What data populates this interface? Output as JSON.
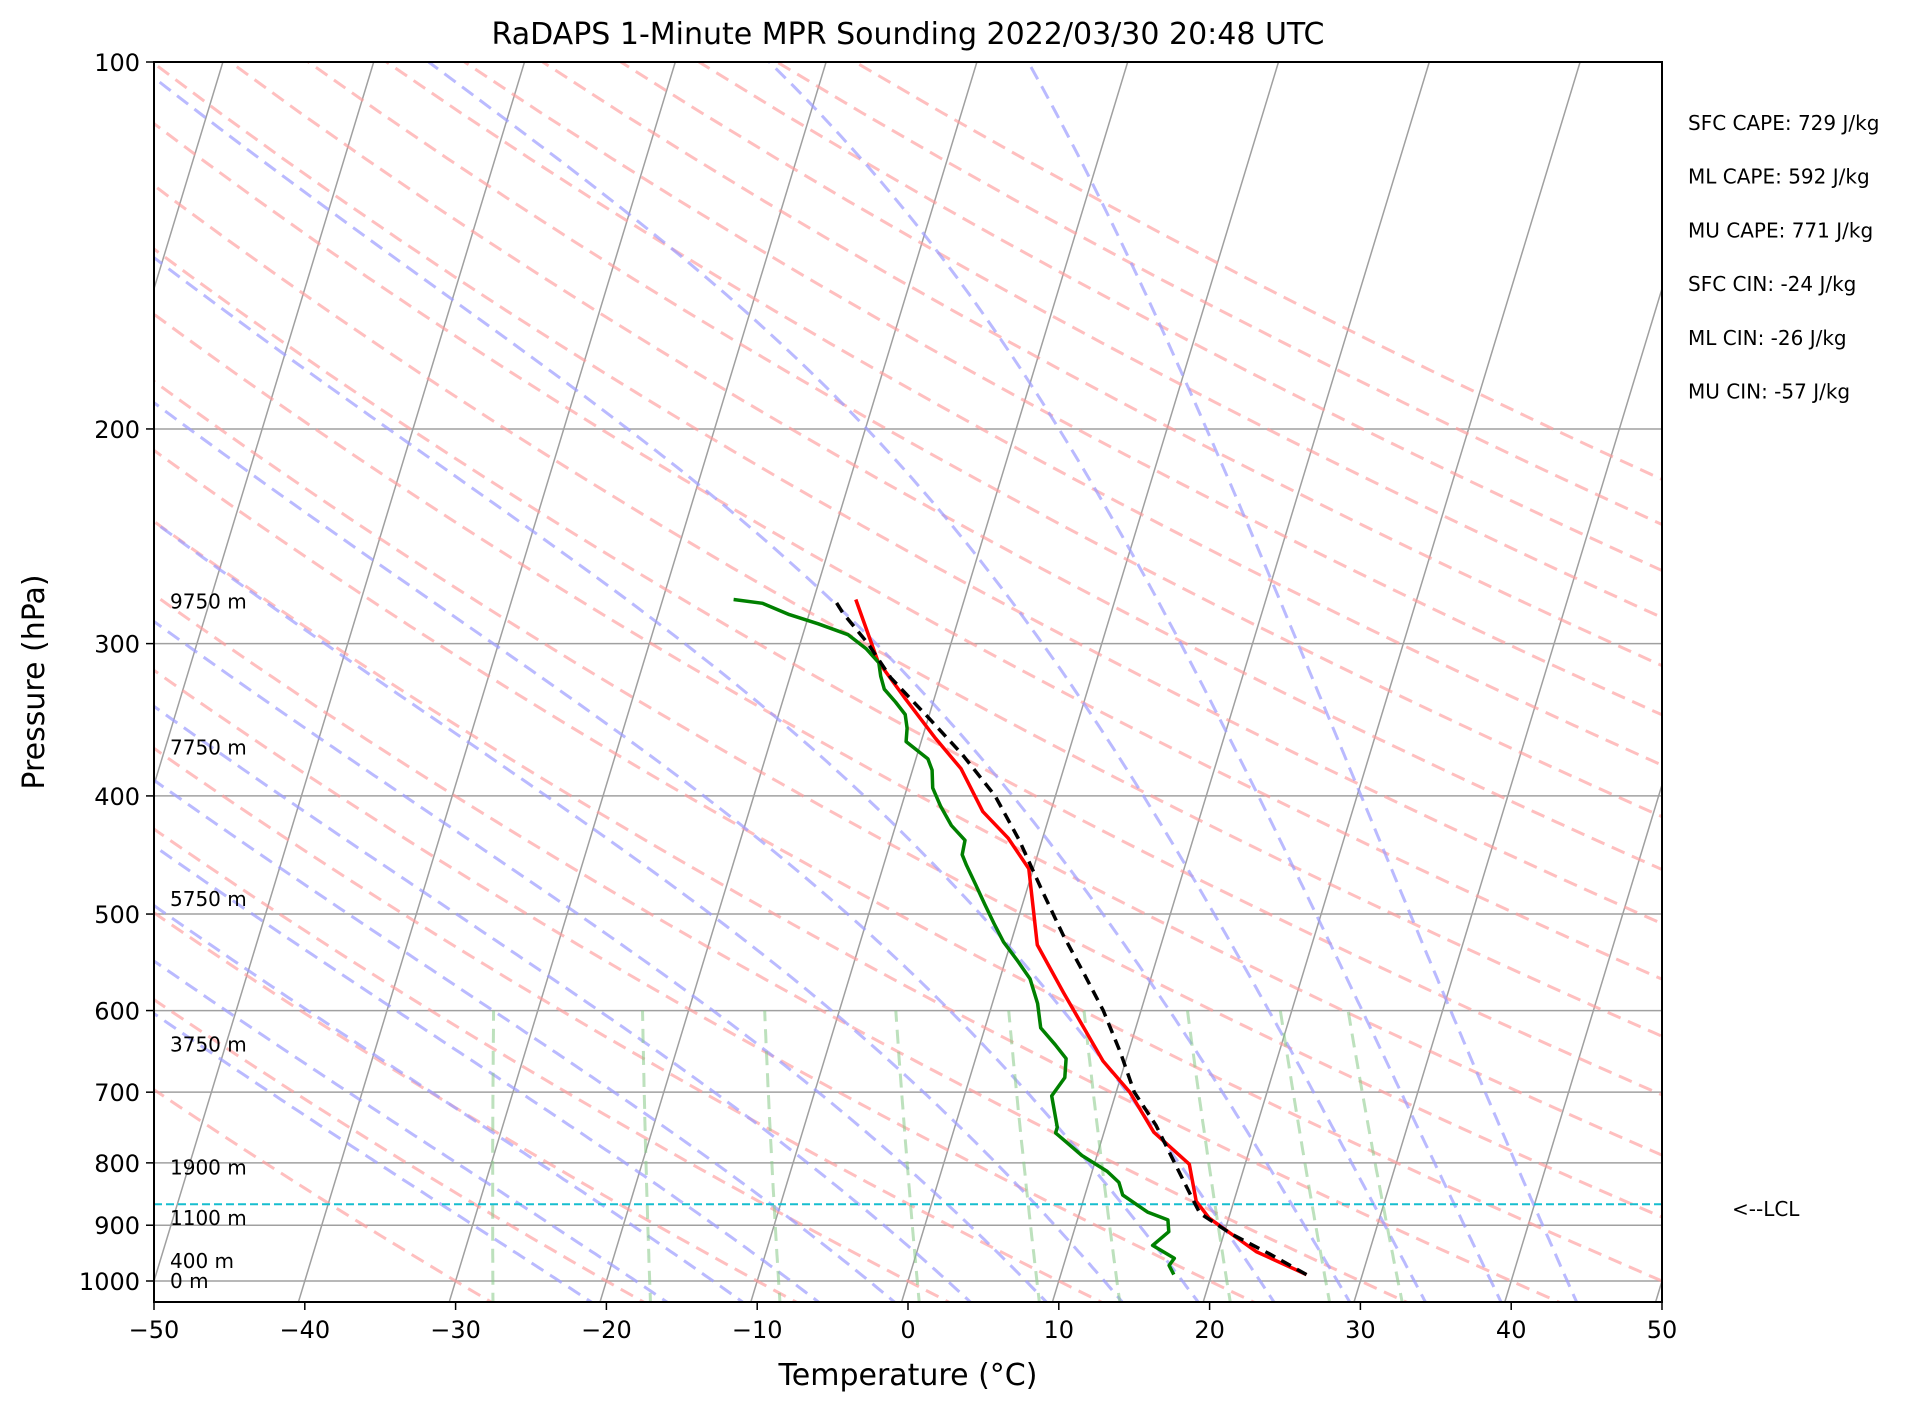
{
  "chart_data": {
    "type": "line",
    "title": "RaDAPS 1-Minute MPR Sounding 2022/03/30 20:48 UTC",
    "xlabel": "Temperature (°C)",
    "ylabel": "Pressure (hPa)",
    "xlim": [
      -50,
      50
    ],
    "ylim": [
      1050,
      100
    ],
    "y_scale": "log",
    "skew_t": true,
    "xticks": [
      -50,
      -40,
      -30,
      -20,
      -10,
      0,
      10,
      20,
      30,
      40,
      50
    ],
    "xtick_labels": [
      "−50",
      "−40",
      "−30",
      "−20",
      "−10",
      "0",
      "10",
      "20",
      "30",
      "40",
      "50"
    ],
    "yticks": [
      1000,
      900,
      800,
      700,
      600,
      500,
      400,
      300,
      200,
      100
    ],
    "ytick_labels": [
      "1000",
      "900",
      "800",
      "700",
      "600",
      "500",
      "400",
      "300",
      "200",
      "100"
    ],
    "grid": true,
    "colors": {
      "temperature": "#ff0000",
      "dewpoint": "#008000",
      "parcel": "#000000",
      "lcl": "#17becf",
      "dry_adiabats": "#ff9c9c",
      "moist_adiabats": "#9c9cff",
      "mixing_ratio": "#86c886",
      "isotherms": "#a0a0a0"
    },
    "height_labels": [
      {
        "label": "0 m",
        "p": 1000
      },
      {
        "label": "400 m",
        "p": 963
      },
      {
        "label": "1100 m",
        "p": 888
      },
      {
        "label": "1900 m",
        "p": 807
      },
      {
        "label": "3750 m",
        "p": 640
      },
      {
        "label": "5750 m",
        "p": 486
      },
      {
        "label": "7750 m",
        "p": 365
      },
      {
        "label": "9750 m",
        "p": 277
      }
    ],
    "lcl": {
      "label": "<--LCL",
      "p": 865
    },
    "indices": [
      "SFC CAPE: 729 J/kg",
      "ML CAPE: 592 J/kg",
      "MU CAPE: 771 J/kg",
      "SFC CIN: -24 J/kg",
      "ML CIN: -26 J/kg",
      "MU CIN: -57 J/kg"
    ],
    "series": [
      {
        "name": "",
        "role": "temperature",
        "points": [
          [
            26.3,
            988
          ],
          [
            22.5,
            946
          ],
          [
            20.5,
            915
          ],
          [
            18.7,
            888
          ],
          [
            17.5,
            860
          ],
          [
            16.3,
            802
          ],
          [
            13.3,
            755
          ],
          [
            10.9,
            700
          ],
          [
            8.5,
            660
          ],
          [
            4.5,
            580
          ],
          [
            1.8,
            530
          ],
          [
            -0.3,
            459
          ],
          [
            -2.3,
            433
          ],
          [
            -4.5,
            412
          ],
          [
            -6.8,
            380
          ],
          [
            -9.2,
            358
          ],
          [
            -11.9,
            333
          ],
          [
            -14.5,
            310
          ],
          [
            -17.2,
            276
          ]
        ]
      },
      {
        "name": "",
        "role": "dewpoint",
        "points": [
          [
            17.5,
            988
          ],
          [
            17.0,
            971
          ],
          [
            17.2,
            958
          ],
          [
            15.5,
            935
          ],
          [
            16.3,
            911
          ],
          [
            16.0,
            891
          ],
          [
            14.5,
            878
          ],
          [
            12.5,
            850
          ],
          [
            12.0,
            830
          ],
          [
            11.0,
            813
          ],
          [
            9.0,
            789
          ],
          [
            6.8,
            756
          ],
          [
            6.8,
            748
          ],
          [
            5.8,
            705
          ],
          [
            6.3,
            681
          ],
          [
            6.0,
            657
          ],
          [
            5.0,
            640
          ],
          [
            3.7,
            620
          ],
          [
            3.0,
            592
          ],
          [
            2.0,
            565
          ],
          [
            0.8,
            546
          ],
          [
            -0.5,
            527
          ],
          [
            -1.5,
            509
          ],
          [
            -2.5,
            491
          ],
          [
            -3.5,
            473
          ],
          [
            -4.5,
            456
          ],
          [
            -5.0,
            447
          ],
          [
            -5.1,
            435
          ],
          [
            -6.3,
            423
          ],
          [
            -7.4,
            408
          ],
          [
            -8.3,
            394
          ],
          [
            -8.7,
            381
          ],
          [
            -9.2,
            373
          ],
          [
            -11.0,
            361
          ],
          [
            -11.2,
            352
          ],
          [
            -11.6,
            343
          ],
          [
            -12.5,
            335
          ],
          [
            -13.5,
            327
          ],
          [
            -14.0,
            319
          ],
          [
            -14.4,
            311
          ],
          [
            -15.5,
            303
          ],
          [
            -17.0,
            295
          ],
          [
            -19.2,
            289
          ],
          [
            -21.3,
            284
          ],
          [
            -23.3,
            278
          ],
          [
            -25.3,
            276
          ]
        ]
      },
      {
        "name": "",
        "role": "parcel",
        "points": [
          [
            26.3,
            988
          ],
          [
            23.5,
            951
          ],
          [
            20.5,
            915
          ],
          [
            18.0,
            880
          ],
          [
            17.5,
            865
          ],
          [
            15.3,
            800
          ],
          [
            13.3,
            745
          ],
          [
            11.2,
            700
          ],
          [
            9.5,
            650
          ],
          [
            7.5,
            600
          ],
          [
            5.5,
            560
          ],
          [
            3.3,
            520
          ],
          [
            1.0,
            478
          ],
          [
            -1.5,
            435
          ],
          [
            -4.0,
            400
          ],
          [
            -7.0,
            370
          ],
          [
            -10.0,
            345
          ],
          [
            -13.3,
            320
          ],
          [
            -15.5,
            300
          ],
          [
            -17.8,
            283
          ],
          [
            -18.5,
            277
          ]
        ]
      }
    ]
  }
}
